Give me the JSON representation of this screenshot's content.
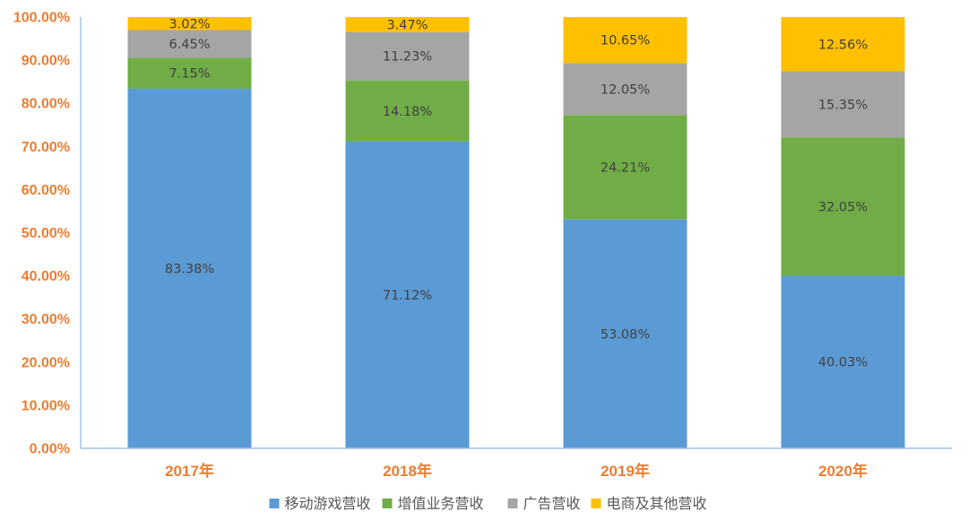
{
  "chart_data": {
    "type": "bar",
    "stacked": true,
    "title": "",
    "xlabel": "",
    "ylabel": "",
    "ylim": [
      0,
      100
    ],
    "y_ticks": [
      "0.00%",
      "10.00%",
      "20.00%",
      "30.00%",
      "40.00%",
      "50.00%",
      "60.00%",
      "70.00%",
      "80.00%",
      "90.00%",
      "100.00%"
    ],
    "categories": [
      "2017年",
      "2018年",
      "2019年",
      "2020年"
    ],
    "series": [
      {
        "name": "移动游戏营收",
        "color": "#5B9BD5",
        "values": [
          83.38,
          71.12,
          53.08,
          40.03
        ],
        "labels": [
          "83.38%",
          "71.12%",
          "53.08%",
          "40.03%"
        ]
      },
      {
        "name": "增值业务营收",
        "color": "#70AD47",
        "values": [
          7.15,
          14.18,
          24.21,
          32.05
        ],
        "labels": [
          "7.15%",
          "14.18%",
          "24.21%",
          "32.05%"
        ]
      },
      {
        "name": "广告营收",
        "color": "#A5A5A5",
        "values": [
          6.45,
          11.23,
          12.05,
          15.35
        ],
        "labels": [
          "6.45%",
          "11.23%",
          "12.05%",
          "15.35%"
        ]
      },
      {
        "name": "电商及其他营收",
        "color": "#FFC000",
        "values": [
          3.02,
          3.47,
          10.65,
          12.56
        ],
        "labels": [
          "3.02%",
          "3.47%",
          "10.65%",
          "12.56%"
        ]
      }
    ],
    "legend_position": "bottom",
    "tick_label_color": "#ED7D31",
    "axis_color": "#9DC3E6"
  }
}
